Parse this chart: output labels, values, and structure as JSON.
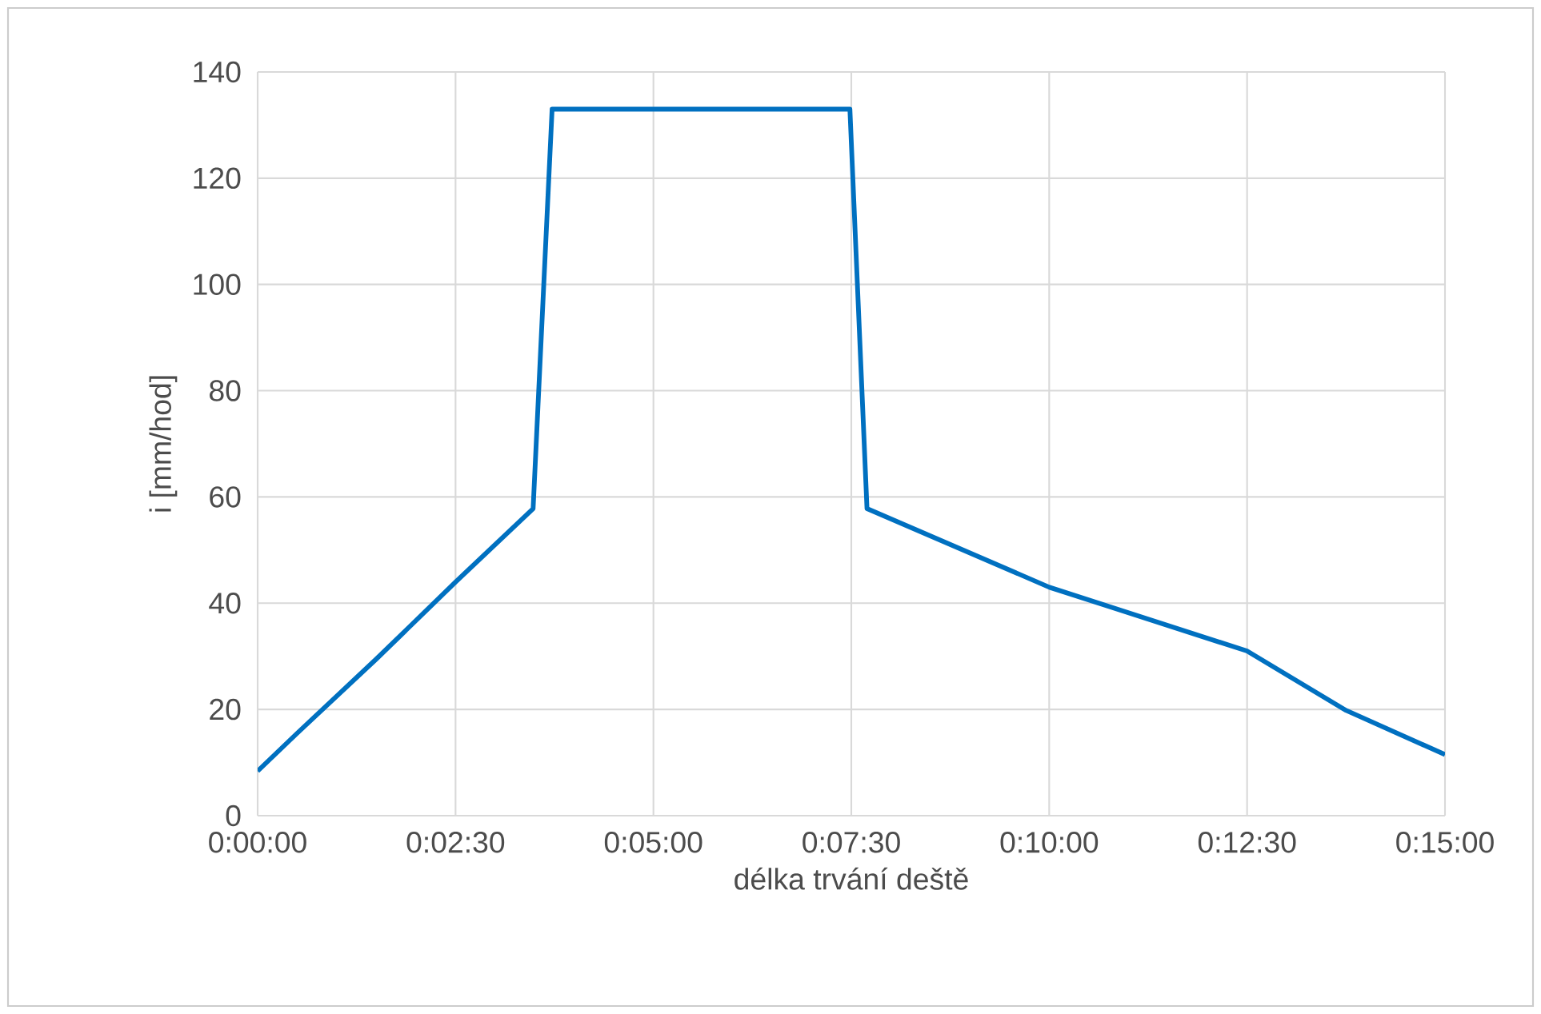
{
  "chart_data": {
    "type": "line",
    "xlabel": "délka trvání deště",
    "ylabel": "i [mm/hod]",
    "x": [
      0,
      0.0083,
      0.025,
      0.0417,
      0.058,
      0.062,
      0.1247,
      0.1283,
      0.1667,
      0.2083,
      0.2292,
      0.25
    ],
    "series": [
      {
        "color": "#0070c0",
        "values": [
          8.4,
          15.5,
          29.5,
          44,
          57.8,
          133,
          133,
          57.8,
          43,
          31,
          19.8,
          11.5
        ]
      }
    ],
    "xlim": [
      0,
      0.25
    ],
    "ylim": [
      0,
      140
    ],
    "xticks": [
      {
        "value": 0,
        "label": "0:00:00"
      },
      {
        "value": 0.041667,
        "label": "0:02:30"
      },
      {
        "value": 0.083333,
        "label": "0:05:00"
      },
      {
        "value": 0.125,
        "label": "0:07:30"
      },
      {
        "value": 0.166667,
        "label": "0:10:00"
      },
      {
        "value": 0.208333,
        "label": "0:12:30"
      },
      {
        "value": 0.25,
        "label": "0:15:00"
      }
    ],
    "yticks": [
      0,
      20,
      40,
      60,
      80,
      100,
      120,
      140
    ],
    "grid": true,
    "legend": false,
    "marker": "none",
    "line_style": "solid"
  }
}
